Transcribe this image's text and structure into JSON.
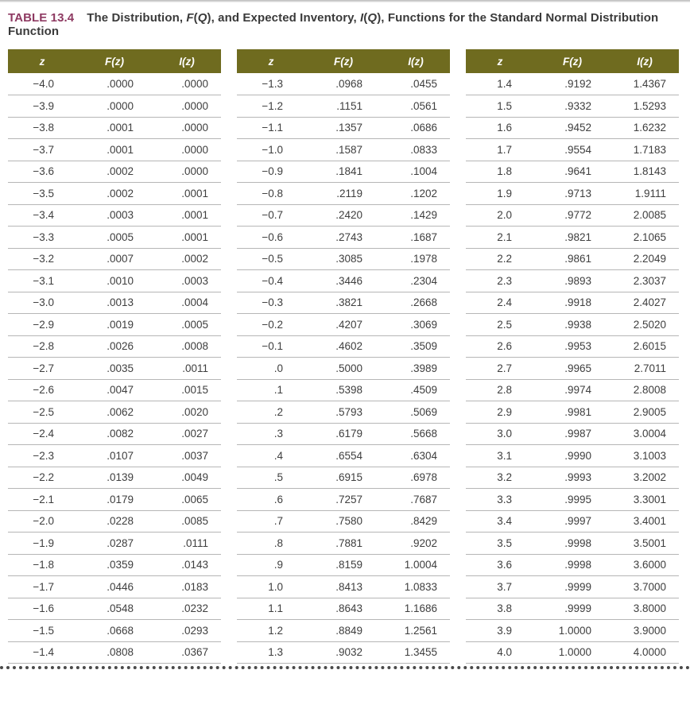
{
  "title": {
    "badge": "TABLE 13.4",
    "segments": [
      {
        "text": "The Distribution, ",
        "italic": false
      },
      {
        "text": "F",
        "italic": true
      },
      {
        "text": "(",
        "italic": false
      },
      {
        "text": "Q",
        "italic": true
      },
      {
        "text": "), and Expected Inventory, ",
        "italic": false
      },
      {
        "text": "I",
        "italic": true
      },
      {
        "text": "(",
        "italic": false
      },
      {
        "text": "Q",
        "italic": true
      },
      {
        "text": "), Functions for the Standard Normal Distribution Function",
        "italic": false
      }
    ]
  },
  "columns": [
    "z",
    "F(z)",
    "I(z)"
  ],
  "colors": {
    "header_bg": "#6f6b1f",
    "header_text": "#ffffff",
    "title_accent": "#8e3a62",
    "body_text": "#3e3e3e",
    "row_line": "#b6b6b6",
    "dot_color": "#4a4a4a"
  },
  "tables": [
    {
      "rows": [
        [
          "−4.0",
          ".0000",
          ".0000"
        ],
        [
          "−3.9",
          ".0000",
          ".0000"
        ],
        [
          "−3.8",
          ".0001",
          ".0000"
        ],
        [
          "−3.7",
          ".0001",
          ".0000"
        ],
        [
          "−3.6",
          ".0002",
          ".0000"
        ],
        [
          "−3.5",
          ".0002",
          ".0001"
        ],
        [
          "−3.4",
          ".0003",
          ".0001"
        ],
        [
          "−3.3",
          ".0005",
          ".0001"
        ],
        [
          "−3.2",
          ".0007",
          ".0002"
        ],
        [
          "−3.1",
          ".0010",
          ".0003"
        ],
        [
          "−3.0",
          ".0013",
          ".0004"
        ],
        [
          "−2.9",
          ".0019",
          ".0005"
        ],
        [
          "−2.8",
          ".0026",
          ".0008"
        ],
        [
          "−2.7",
          ".0035",
          ".0011"
        ],
        [
          "−2.6",
          ".0047",
          ".0015"
        ],
        [
          "−2.5",
          ".0062",
          ".0020"
        ],
        [
          "−2.4",
          ".0082",
          ".0027"
        ],
        [
          "−2.3",
          ".0107",
          ".0037"
        ],
        [
          "−2.2",
          ".0139",
          ".0049"
        ],
        [
          "−2.1",
          ".0179",
          ".0065"
        ],
        [
          "−2.0",
          ".0228",
          ".0085"
        ],
        [
          "−1.9",
          ".0287",
          ".0111"
        ],
        [
          "−1.8",
          ".0359",
          ".0143"
        ],
        [
          "−1.7",
          ".0446",
          ".0183"
        ],
        [
          "−1.6",
          ".0548",
          ".0232"
        ],
        [
          "−1.5",
          ".0668",
          ".0293"
        ],
        [
          "−1.4",
          ".0808",
          ".0367"
        ]
      ]
    },
    {
      "rows": [
        [
          "−1.3",
          ".0968",
          ".0455"
        ],
        [
          "−1.2",
          ".1151",
          ".0561"
        ],
        [
          "−1.1",
          ".1357",
          ".0686"
        ],
        [
          "−1.0",
          ".1587",
          ".0833"
        ],
        [
          "−0.9",
          ".1841",
          ".1004"
        ],
        [
          "−0.8",
          ".2119",
          ".1202"
        ],
        [
          "−0.7",
          ".2420",
          ".1429"
        ],
        [
          "−0.6",
          ".2743",
          ".1687"
        ],
        [
          "−0.5",
          ".3085",
          ".1978"
        ],
        [
          "−0.4",
          ".3446",
          ".2304"
        ],
        [
          "−0.3",
          ".3821",
          ".2668"
        ],
        [
          "−0.2",
          ".4207",
          ".3069"
        ],
        [
          "−0.1",
          ".4602",
          ".3509"
        ],
        [
          ".0",
          ".5000",
          ".3989"
        ],
        [
          ".1",
          ".5398",
          ".4509"
        ],
        [
          ".2",
          ".5793",
          ".5069"
        ],
        [
          ".3",
          ".6179",
          ".5668"
        ],
        [
          ".4",
          ".6554",
          ".6304"
        ],
        [
          ".5",
          ".6915",
          ".6978"
        ],
        [
          ".6",
          ".7257",
          ".7687"
        ],
        [
          ".7",
          ".7580",
          ".8429"
        ],
        [
          ".8",
          ".7881",
          ".9202"
        ],
        [
          ".9",
          ".8159",
          "1.0004"
        ],
        [
          "1.0",
          ".8413",
          "1.0833"
        ],
        [
          "1.1",
          ".8643",
          "1.1686"
        ],
        [
          "1.2",
          ".8849",
          "1.2561"
        ],
        [
          "1.3",
          ".9032",
          "1.3455"
        ]
      ]
    },
    {
      "rows": [
        [
          "1.4",
          ".9192",
          "1.4367"
        ],
        [
          "1.5",
          ".9332",
          "1.5293"
        ],
        [
          "1.6",
          ".9452",
          "1.6232"
        ],
        [
          "1.7",
          ".9554",
          "1.7183"
        ],
        [
          "1.8",
          ".9641",
          "1.8143"
        ],
        [
          "1.9",
          ".9713",
          "1.9111"
        ],
        [
          "2.0",
          ".9772",
          "2.0085"
        ],
        [
          "2.1",
          ".9821",
          "2.1065"
        ],
        [
          "2.2",
          ".9861",
          "2.2049"
        ],
        [
          "2.3",
          ".9893",
          "2.3037"
        ],
        [
          "2.4",
          ".9918",
          "2.4027"
        ],
        [
          "2.5",
          ".9938",
          "2.5020"
        ],
        [
          "2.6",
          ".9953",
          "2.6015"
        ],
        [
          "2.7",
          ".9965",
          "2.7011"
        ],
        [
          "2.8",
          ".9974",
          "2.8008"
        ],
        [
          "2.9",
          ".9981",
          "2.9005"
        ],
        [
          "3.0",
          ".9987",
          "3.0004"
        ],
        [
          "3.1",
          ".9990",
          "3.1003"
        ],
        [
          "3.2",
          ".9993",
          "3.2002"
        ],
        [
          "3.3",
          ".9995",
          "3.3001"
        ],
        [
          "3.4",
          ".9997",
          "3.4001"
        ],
        [
          "3.5",
          ".9998",
          "3.5001"
        ],
        [
          "3.6",
          ".9998",
          "3.6000"
        ],
        [
          "3.7",
          ".9999",
          "3.7000"
        ],
        [
          "3.8",
          ".9999",
          "3.8000"
        ],
        [
          "3.9",
          "1.0000",
          "3.9000"
        ],
        [
          "4.0",
          "1.0000",
          "4.0000"
        ]
      ]
    }
  ]
}
